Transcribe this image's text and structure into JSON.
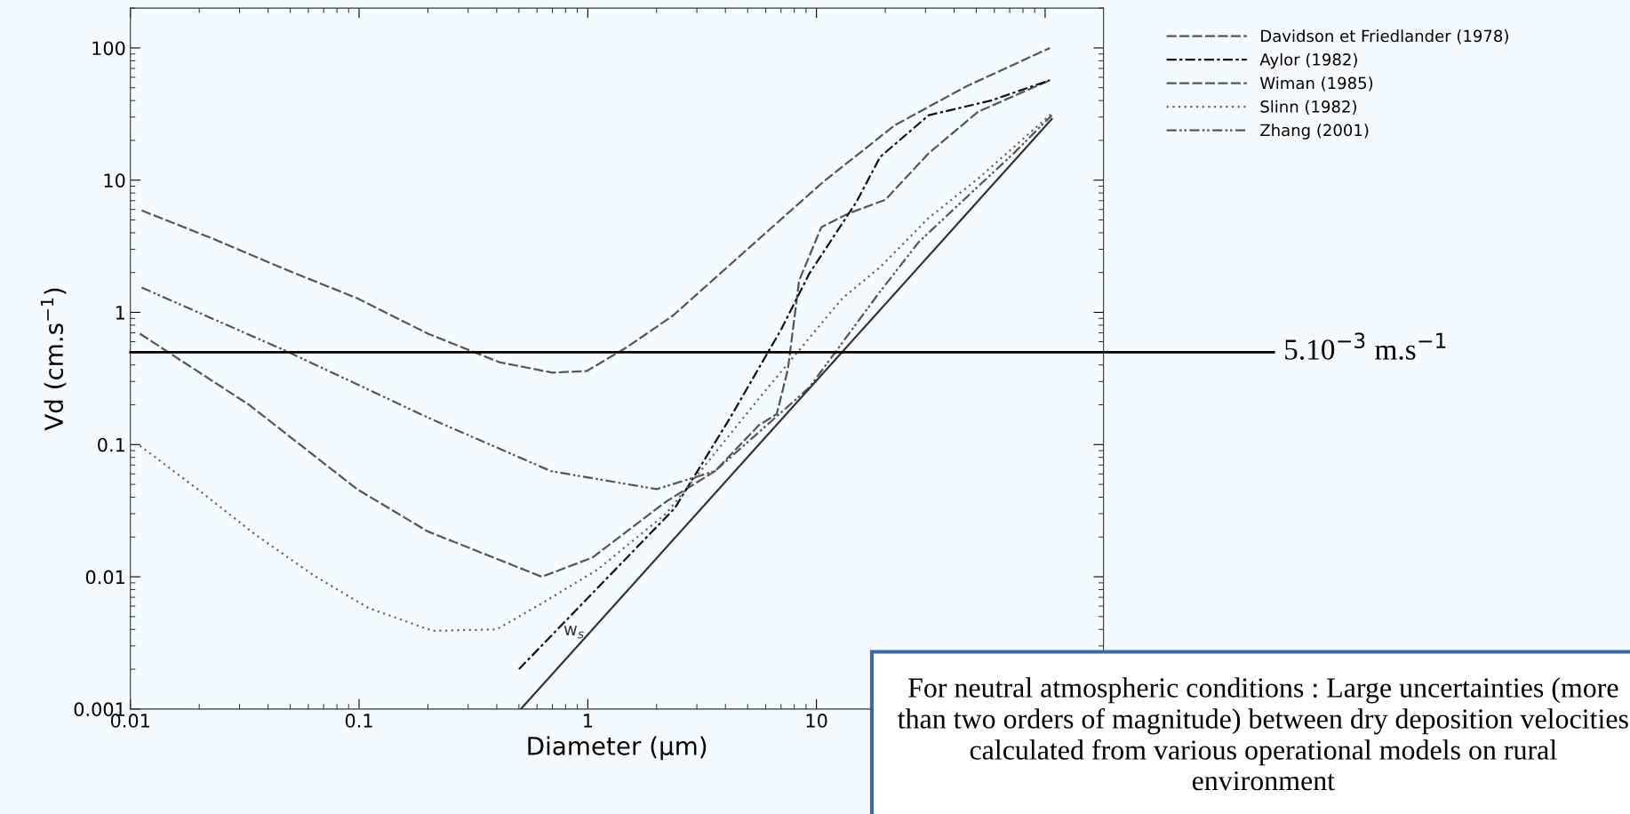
{
  "chart_data": {
    "type": "line",
    "xlabel": "Diameter (µm)",
    "ylabel": "Vd (cm.s$^{−1}$)",
    "log": "xy",
    "grid": false,
    "legend": "top right",
    "marker": "none",
    "xlim": [
      0.01,
      180
    ],
    "ylim": [
      0.001,
      200
    ],
    "xticks": [
      0.01,
      0.1,
      1,
      10,
      {
        "value": 100,
        "label": null
      }
    ],
    "yticks": [
      0.001,
      0.01,
      0.1,
      1,
      10,
      100
    ],
    "series": [
      {
        "name": "Davidson et Friedlander (1978)",
        "color": "#555555",
        "line_style": "dashed",
        "x": [
          0.011,
          0.033,
          0.098,
          0.2,
          0.63,
          1.05,
          2.2,
          3.6,
          5.6,
          6.7,
          7.5,
          8.4,
          10.5,
          13.8,
          20,
          31,
          51,
          105
        ],
        "values": [
          0.69,
          0.2,
          0.046,
          0.022,
          0.01,
          0.014,
          0.037,
          0.063,
          0.14,
          0.17,
          0.37,
          1.74,
          4.4,
          5.6,
          7.1,
          16,
          33,
          57
        ]
      },
      {
        "name": "Aylor (1982)",
        "color": "#111111",
        "line_style": "dashdot",
        "x": [
          0.5,
          2.4,
          4.2,
          7.0,
          9.3,
          15,
          19,
          31,
          58,
          105
        ],
        "values": [
          0.002,
          0.033,
          0.16,
          0.74,
          1.96,
          6.9,
          15,
          31,
          40,
          57
        ]
      },
      {
        "name": "Wiman (1985)",
        "color": "#555555",
        "line_style": "dashed",
        "x": [
          0.0112,
          0.023,
          0.048,
          0.098,
          0.2,
          0.41,
          0.7,
          0.99,
          1.47,
          2.35,
          5.2,
          10.7,
          22,
          45,
          105
        ],
        "values": [
          5.9,
          3.6,
          2.1,
          1.28,
          0.69,
          0.42,
          0.35,
          0.36,
          0.54,
          0.94,
          3.2,
          9.7,
          26,
          51,
          100
        ]
      },
      {
        "name": "Slinn (1982)",
        "color": "#666666",
        "line_style": "dotted",
        "x": [
          0.011,
          0.02,
          0.035,
          0.063,
          0.11,
          0.21,
          0.4,
          0.63,
          1.1,
          2.2,
          5.8,
          13,
          19,
          31,
          51,
          107
        ],
        "values": [
          0.098,
          0.045,
          0.021,
          0.0103,
          0.0058,
          0.0039,
          0.004,
          0.0063,
          0.0113,
          0.03,
          0.24,
          1.28,
          2.2,
          5.2,
          10.3,
          32
        ]
      },
      {
        "name": "Zhang (2001)",
        "color": "#555555",
        "line_style": "dashdotdot",
        "x": [
          0.0112,
          0.048,
          0.2,
          0.69,
          2.0,
          3.6,
          9.3,
          19,
          28,
          46,
          73,
          107
        ],
        "values": [
          1.54,
          0.51,
          0.16,
          0.063,
          0.046,
          0.063,
          0.27,
          1.44,
          3.4,
          7.6,
          16,
          31
        ]
      },
      {
        "color": "#333333",
        "line_style": "solid",
        "x": [
          0.51,
          107
        ],
        "values": [
          0.001,
          29
        ]
      }
    ],
    "ref_lines": [
      {
        "axis": "y",
        "value": 0.5,
        "label": "5.10$^{−3}$ m.s$^{−1}$",
        "color": "#000000",
        "line_style": "solid"
      }
    ],
    "annotations": [
      "w$_{s}$",
      "For neutral atmospheric conditions : Large uncertainties (more than two orders of magnitude) between dry deposition velocities calculated from various operational models on rural environment"
    ]
  }
}
